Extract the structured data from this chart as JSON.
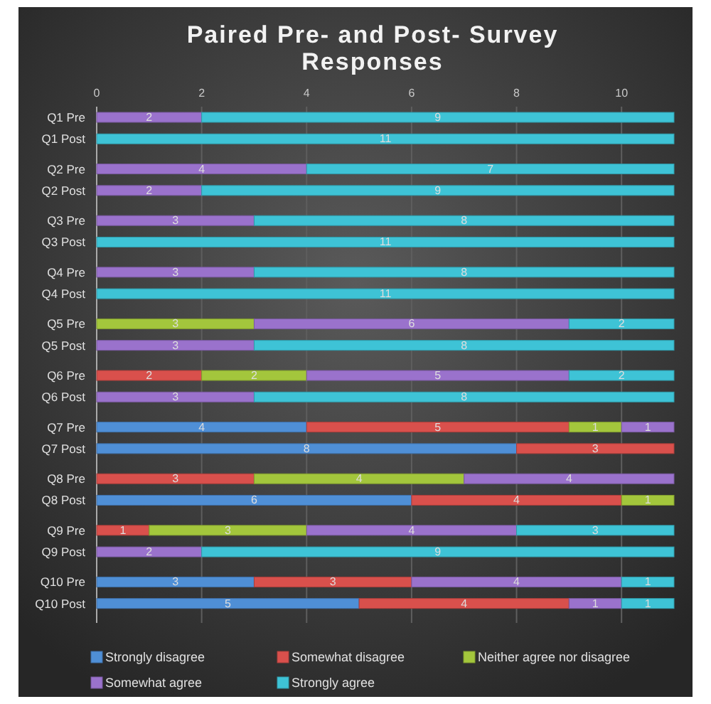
{
  "chart_data": {
    "type": "bar",
    "orientation": "horizontal",
    "stacked": true,
    "title": "Paired Pre- and Post- Survey Responses",
    "categories": [
      "Q1 Pre",
      "Q1 Post",
      "Q2 Pre",
      "Q2 Post",
      "Q3 Pre",
      "Q3 Post",
      "Q4 Pre",
      "Q4 Post",
      "Q5 Pre",
      "Q5 Post",
      "Q6 Pre",
      "Q6 Post",
      "Q7 Pre",
      "Q7 Post",
      "Q8 Pre",
      "Q8 Post",
      "Q9 Pre",
      "Q9 Post",
      "Q10 Pre",
      "Q10 Post"
    ],
    "series": [
      {
        "name": "Strongly disagree",
        "color": "#4f8fd6",
        "values": [
          null,
          null,
          null,
          null,
          null,
          null,
          null,
          null,
          null,
          null,
          null,
          null,
          4,
          8,
          null,
          6,
          null,
          null,
          3,
          5
        ]
      },
      {
        "name": "Somewhat disagree",
        "color": "#d9504c",
        "values": [
          null,
          null,
          null,
          null,
          null,
          null,
          null,
          null,
          null,
          null,
          2,
          null,
          5,
          3,
          3,
          4,
          1,
          null,
          3,
          4
        ]
      },
      {
        "name": "Neither agree nor disagree",
        "color": "#a3c63c",
        "values": [
          null,
          null,
          null,
          null,
          null,
          null,
          null,
          null,
          3,
          null,
          2,
          null,
          1,
          null,
          4,
          1,
          3,
          null,
          null,
          null
        ]
      },
      {
        "name": "Somewhat agree",
        "color": "#9a72cc",
        "values": [
          2,
          null,
          4,
          2,
          3,
          null,
          3,
          null,
          6,
          3,
          5,
          3,
          1,
          null,
          4,
          null,
          4,
          2,
          4,
          1
        ]
      },
      {
        "name": "Strongly agree",
        "color": "#3ec3d6",
        "values": [
          9,
          11,
          7,
          9,
          8,
          11,
          8,
          11,
          2,
          8,
          2,
          8,
          null,
          null,
          null,
          null,
          3,
          9,
          1,
          1
        ]
      }
    ],
    "xlim": [
      0,
      11
    ],
    "xticks": [
      0,
      2,
      4,
      6,
      8,
      10
    ],
    "grid": "x",
    "data_labels": true,
    "legend": "bottom"
  }
}
